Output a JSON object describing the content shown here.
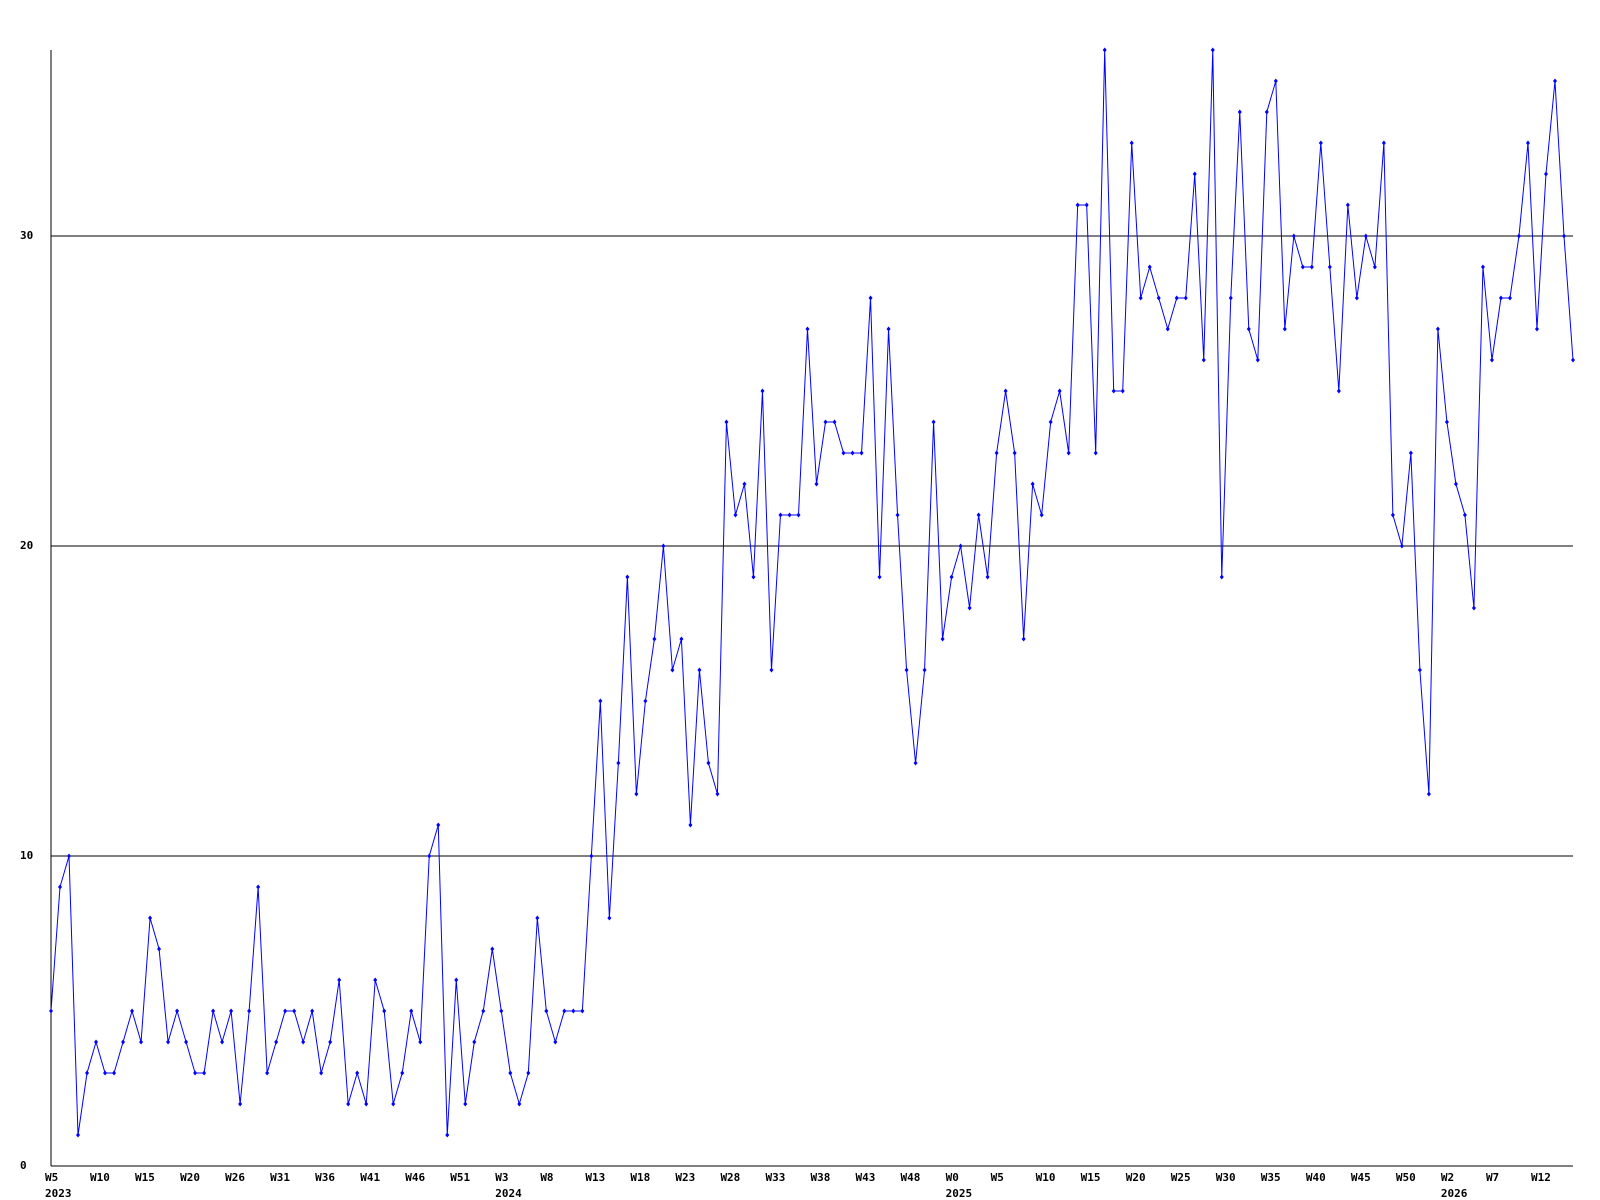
{
  "chart_data": {
    "type": "line",
    "categories": [
      "W5",
      null,
      null,
      null,
      null,
      "W10",
      null,
      null,
      null,
      null,
      "W15",
      null,
      null,
      null,
      null,
      "W20",
      null,
      null,
      null,
      null,
      "W26",
      null,
      null,
      null,
      null,
      "W31",
      null,
      null,
      null,
      null,
      "W36",
      null,
      null,
      null,
      null,
      "W41",
      null,
      null,
      null,
      null,
      "W46",
      null,
      null,
      null,
      null,
      "W51",
      null,
      null,
      null,
      null,
      "W3",
      null,
      null,
      null,
      null,
      "W8",
      null,
      null,
      null,
      null,
      "W13",
      null,
      null,
      null,
      null,
      "W18",
      null,
      null,
      null,
      null,
      "W23",
      null,
      null,
      null,
      null,
      "W28",
      null,
      null,
      null,
      null,
      "W33",
      null,
      null,
      null,
      null,
      "W38",
      null,
      null,
      null,
      null,
      "W43",
      null,
      null,
      null,
      null,
      "W48",
      null,
      null,
      null,
      null,
      "W0",
      null,
      null,
      null,
      null,
      "W5",
      null,
      null,
      null,
      null,
      "W10",
      null,
      null,
      null,
      null,
      "W15",
      null,
      null,
      null,
      null,
      "W20",
      null,
      null,
      null,
      null,
      "W25",
      null,
      null,
      null,
      null,
      "W30",
      null,
      null,
      null,
      null,
      "W35",
      null,
      null,
      null,
      null,
      "W40",
      null,
      null,
      null,
      null,
      "W45",
      null,
      null,
      null,
      null,
      "W50",
      null,
      null,
      null,
      null,
      "W2",
      null,
      null,
      null,
      null,
      "W7",
      null,
      null,
      null,
      null,
      "W12",
      null,
      null,
      null,
      null
    ],
    "years": [
      "2023",
      null,
      null,
      null,
      null,
      null,
      null,
      null,
      null,
      null,
      null,
      null,
      null,
      null,
      null,
      null,
      null,
      null,
      null,
      null,
      null,
      null,
      null,
      null,
      null,
      null,
      null,
      null,
      null,
      null,
      null,
      null,
      null,
      null,
      null,
      null,
      null,
      null,
      null,
      null,
      null,
      null,
      null,
      null,
      null,
      null,
      null,
      null,
      null,
      null,
      "2024",
      null,
      null,
      null,
      null,
      null,
      null,
      null,
      null,
      null,
      null,
      null,
      null,
      null,
      null,
      null,
      null,
      null,
      null,
      null,
      null,
      null,
      null,
      null,
      null,
      null,
      null,
      null,
      null,
      null,
      null,
      null,
      null,
      null,
      null,
      null,
      null,
      null,
      null,
      null,
      null,
      null,
      null,
      null,
      null,
      null,
      null,
      null,
      null,
      null,
      "2025",
      null,
      null,
      null,
      null,
      null,
      null,
      null,
      null,
      null,
      null,
      null,
      null,
      null,
      null,
      null,
      null,
      null,
      null,
      null,
      null,
      null,
      null,
      null,
      null,
      null,
      null,
      null,
      null,
      null,
      null,
      null,
      null,
      null,
      null,
      null,
      null,
      null,
      null,
      null,
      null,
      null,
      null,
      null,
      null,
      null,
      null,
      null,
      null,
      null,
      null,
      null,
      null,
      null,
      null,
      "2026",
      null,
      null,
      null,
      null,
      null,
      null,
      null,
      null,
      null,
      null,
      null,
      null,
      null,
      null
    ],
    "series": [
      {
        "color": "#0000ff",
        "values": [
          5,
          9,
          10,
          1,
          3,
          4,
          3,
          3,
          4,
          5,
          4,
          8,
          7,
          4,
          5,
          4,
          3,
          3,
          5,
          4,
          5,
          2,
          5,
          9,
          3,
          4,
          5,
          5,
          4,
          5,
          3,
          4,
          6,
          2,
          3,
          2,
          6,
          5,
          2,
          3,
          5,
          4,
          10,
          11,
          1,
          6,
          2,
          4,
          5,
          7,
          5,
          3,
          2,
          3,
          8,
          5,
          4,
          5,
          5,
          5,
          10,
          15,
          8,
          13,
          19,
          12,
          15,
          17,
          20,
          16,
          17,
          11,
          16,
          13,
          12,
          24,
          21,
          22,
          19,
          25,
          16,
          21,
          21,
          21,
          27,
          22,
          24,
          24,
          23,
          23,
          23,
          28,
          19,
          27,
          21,
          16,
          13,
          16,
          24,
          17,
          19,
          20,
          18,
          21,
          19,
          23,
          25,
          23,
          17,
          22,
          21,
          24,
          25,
          23,
          31,
          31,
          23,
          36,
          25,
          25,
          33,
          28,
          29,
          28,
          27,
          28,
          28,
          32,
          26,
          36,
          19,
          28,
          34,
          27,
          26,
          34,
          35,
          27,
          30,
          29,
          29,
          33,
          29,
          25,
          31,
          28,
          30,
          29,
          33,
          21,
          20,
          23,
          16,
          12,
          27,
          24,
          22,
          21,
          18,
          29,
          26,
          28,
          28,
          30,
          33,
          27,
          32,
          35,
          30,
          26
        ]
      }
    ],
    "ylim": [
      0,
      36
    ],
    "yticks": [
      0,
      10,
      20,
      30
    ],
    "grid": true
  }
}
